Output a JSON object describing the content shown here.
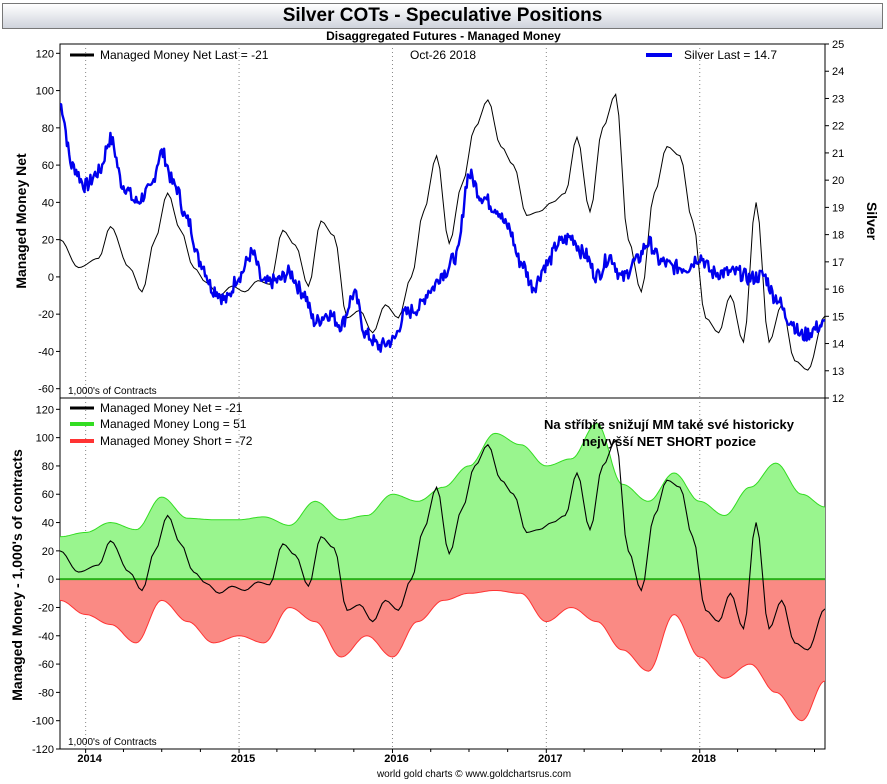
{
  "header": {
    "title": "Silver COTs - Speculative Positions",
    "subtitle": "Disaggregated Futures - Managed Money",
    "footer": "world gold charts © www.goldchartsrus.com"
  },
  "colors": {
    "net": "#000000",
    "silver": "#0000ee",
    "long": "#33dd22",
    "long_fill": "#99f58e",
    "short": "#ff3333",
    "short_fill": "#fa8a84"
  },
  "chart_data": [
    {
      "type": "line",
      "position": "top",
      "ylabel": "Managed Money Net",
      "y2label": "Silver",
      "ylim": [
        -65,
        125
      ],
      "y2lim": [
        12,
        25
      ],
      "yticks": [
        120,
        100,
        80,
        60,
        40,
        20,
        0,
        -20,
        -40,
        -60
      ],
      "y2ticks": [
        25,
        24,
        23,
        22,
        21,
        20,
        19,
        18,
        17,
        16,
        15,
        14,
        13,
        12
      ],
      "date_label": "Oct-26  2018",
      "units_note": "1,000's of Contracts",
      "x_range": [
        "2013-11-01",
        "2018-10-26"
      ],
      "series": [
        {
          "name": "Managed Money Net",
          "legend": "Managed Money Net   Last = -21",
          "axis": "left",
          "x": [
            "2013-11-01",
            "2013-12-15",
            "2014-02-01",
            "2014-03-01",
            "2014-04-15",
            "2014-05-15",
            "2014-06-15",
            "2014-07-15",
            "2014-08-15",
            "2014-09-15",
            "2014-10-15",
            "2014-11-15",
            "2014-12-15",
            "2015-01-15",
            "2015-02-15",
            "2015-03-15",
            "2015-04-15",
            "2015-05-15",
            "2015-06-15",
            "2015-07-15",
            "2015-08-15",
            "2015-09-15",
            "2015-10-15",
            "2015-11-15",
            "2015-12-15",
            "2016-01-15",
            "2016-02-15",
            "2016-03-15",
            "2016-04-15",
            "2016-05-15",
            "2016-06-15",
            "2016-07-15",
            "2016-08-15",
            "2016-09-15",
            "2016-10-15",
            "2016-11-15",
            "2016-12-15",
            "2017-01-15",
            "2017-02-15",
            "2017-03-15",
            "2017-04-15",
            "2017-05-15",
            "2017-06-15",
            "2017-07-15",
            "2017-08-15",
            "2017-09-15",
            "2017-10-15",
            "2017-11-15",
            "2017-12-15",
            "2018-01-15",
            "2018-02-15",
            "2018-03-15",
            "2018-04-15",
            "2018-05-15",
            "2018-06-15",
            "2018-07-15",
            "2018-08-15",
            "2018-09-15",
            "2018-10-26"
          ],
          "values": [
            20,
            5,
            10,
            27,
            5,
            -8,
            20,
            45,
            25,
            5,
            -3,
            -10,
            -5,
            -8,
            -2,
            -4,
            25,
            17,
            -5,
            30,
            22,
            -22,
            -18,
            -30,
            -15,
            -22,
            0,
            35,
            65,
            18,
            50,
            80,
            95,
            70,
            60,
            33,
            35,
            40,
            45,
            75,
            35,
            80,
            98,
            20,
            -8,
            45,
            70,
            65,
            30,
            -22,
            -30,
            -10,
            -35,
            40,
            -35,
            -15,
            -45,
            -50,
            -21
          ]
        },
        {
          "name": "Silver",
          "legend": "Silver Last = 14.7",
          "axis": "right",
          "x": [
            "2013-11-01",
            "2013-12-01",
            "2014-01-01",
            "2014-02-01",
            "2014-03-01",
            "2014-04-01",
            "2014-05-01",
            "2014-06-01",
            "2014-07-01",
            "2014-08-01",
            "2014-09-01",
            "2014-10-01",
            "2014-11-01",
            "2014-12-01",
            "2015-01-01",
            "2015-02-01",
            "2015-03-01",
            "2015-04-01",
            "2015-05-01",
            "2015-06-01",
            "2015-07-01",
            "2015-08-01",
            "2015-09-01",
            "2015-10-01",
            "2015-11-01",
            "2015-12-01",
            "2016-01-01",
            "2016-02-01",
            "2016-03-01",
            "2016-04-01",
            "2016-05-01",
            "2016-06-01",
            "2016-07-01",
            "2016-08-01",
            "2016-09-01",
            "2016-10-01",
            "2016-11-01",
            "2016-12-01",
            "2017-01-01",
            "2017-02-01",
            "2017-03-01",
            "2017-04-01",
            "2017-05-01",
            "2017-06-01",
            "2017-07-01",
            "2017-08-01",
            "2017-09-01",
            "2017-10-01",
            "2017-11-01",
            "2017-12-01",
            "2018-01-01",
            "2018-02-01",
            "2018-03-01",
            "2018-04-01",
            "2018-05-01",
            "2018-06-01",
            "2018-07-01",
            "2018-08-01",
            "2018-09-01",
            "2018-10-26"
          ],
          "values": [
            22.8,
            20.5,
            19.8,
            20.3,
            21.5,
            19.8,
            19.2,
            19.6,
            21.0,
            19.8,
            18.5,
            17.0,
            16.0,
            15.6,
            16.5,
            17.3,
            16.2,
            16.3,
            16.6,
            15.9,
            14.8,
            15.1,
            14.7,
            15.8,
            14.3,
            13.9,
            14.1,
            15.1,
            15.3,
            16.0,
            16.6,
            17.2,
            20.2,
            19.4,
            19.0,
            18.3,
            17.0,
            16.1,
            16.9,
            17.7,
            17.9,
            17.3,
            16.5,
            17.2,
            16.4,
            17.0,
            17.7,
            17.0,
            16.8,
            16.8,
            17.2,
            16.6,
            16.6,
            16.6,
            16.4,
            16.5,
            15.7,
            14.9,
            14.3,
            14.7
          ]
        }
      ]
    },
    {
      "type": "area",
      "position": "bottom",
      "ylabel": "Managed Money - 1,000's of contracts",
      "ylim": [
        -120,
        128
      ],
      "yticks": [
        120,
        100,
        80,
        60,
        40,
        20,
        0,
        -20,
        -40,
        -60,
        -80,
        -100,
        -120
      ],
      "xticks": [
        "2014",
        "2015",
        "2016",
        "2017",
        "2018"
      ],
      "units_note": "1,000's of Contracts",
      "annotation": [
        "Na stříbře snižují MM také své historicky",
        "nejvyšší NET SHORT pozice"
      ],
      "x_range": [
        "2013-11-01",
        "2018-10-26"
      ],
      "series": [
        {
          "name": "Managed Money Net",
          "legend": "Managed Money Net      = -21",
          "x": [
            "2013-11-01",
            "2013-12-15",
            "2014-02-01",
            "2014-03-01",
            "2014-04-15",
            "2014-05-15",
            "2014-06-15",
            "2014-07-15",
            "2014-08-15",
            "2014-09-15",
            "2014-10-15",
            "2014-11-15",
            "2014-12-15",
            "2015-01-15",
            "2015-02-15",
            "2015-03-15",
            "2015-04-15",
            "2015-05-15",
            "2015-06-15",
            "2015-07-15",
            "2015-08-15",
            "2015-09-15",
            "2015-10-15",
            "2015-11-15",
            "2015-12-15",
            "2016-01-15",
            "2016-02-15",
            "2016-03-15",
            "2016-04-15",
            "2016-05-15",
            "2016-06-15",
            "2016-07-15",
            "2016-08-15",
            "2016-09-15",
            "2016-10-15",
            "2016-11-15",
            "2016-12-15",
            "2017-01-15",
            "2017-02-15",
            "2017-03-15",
            "2017-04-15",
            "2017-05-15",
            "2017-06-15",
            "2017-07-15",
            "2017-08-15",
            "2017-09-15",
            "2017-10-15",
            "2017-11-15",
            "2017-12-15",
            "2018-01-15",
            "2018-02-15",
            "2018-03-15",
            "2018-04-15",
            "2018-05-15",
            "2018-06-15",
            "2018-07-15",
            "2018-08-15",
            "2018-09-15",
            "2018-10-26"
          ],
          "values": [
            20,
            5,
            10,
            27,
            5,
            -8,
            20,
            45,
            25,
            5,
            -3,
            -10,
            -5,
            -8,
            -2,
            -4,
            25,
            17,
            -5,
            30,
            22,
            -22,
            -18,
            -30,
            -15,
            -22,
            0,
            35,
            65,
            18,
            50,
            80,
            95,
            70,
            60,
            33,
            35,
            40,
            45,
            75,
            35,
            80,
            98,
            20,
            -8,
            45,
            70,
            65,
            30,
            -22,
            -30,
            -10,
            -35,
            40,
            -35,
            -15,
            -45,
            -50,
            -21
          ]
        },
        {
          "name": "Managed Money Long",
          "legend": "Managed Money Long    = 51",
          "x": [
            "2013-11-01",
            "2014-01-01",
            "2014-03-01",
            "2014-05-01",
            "2014-07-01",
            "2014-09-01",
            "2014-11-01",
            "2015-01-01",
            "2015-03-01",
            "2015-05-01",
            "2015-07-01",
            "2015-09-01",
            "2015-11-01",
            "2016-01-01",
            "2016-03-01",
            "2016-05-01",
            "2016-07-01",
            "2016-09-01",
            "2016-11-01",
            "2017-01-01",
            "2017-03-01",
            "2017-05-01",
            "2017-07-01",
            "2017-09-01",
            "2017-11-01",
            "2018-01-01",
            "2018-03-01",
            "2018-05-01",
            "2018-07-01",
            "2018-09-01",
            "2018-10-26"
          ],
          "values": [
            30,
            33,
            40,
            35,
            58,
            43,
            42,
            42,
            44,
            38,
            55,
            42,
            45,
            60,
            55,
            65,
            80,
            103,
            95,
            80,
            85,
            110,
            67,
            55,
            75,
            55,
            45,
            65,
            82,
            60,
            51
          ]
        },
        {
          "name": "Managed Money Short",
          "legend": "Managed Money Short   = -72",
          "x": [
            "2013-11-01",
            "2014-01-01",
            "2014-03-01",
            "2014-05-01",
            "2014-07-01",
            "2014-09-01",
            "2014-11-01",
            "2015-01-01",
            "2015-03-01",
            "2015-05-01",
            "2015-07-01",
            "2015-09-01",
            "2015-11-01",
            "2016-01-01",
            "2016-03-01",
            "2016-05-01",
            "2016-07-01",
            "2016-09-01",
            "2016-11-01",
            "2017-01-01",
            "2017-03-01",
            "2017-05-01",
            "2017-07-01",
            "2017-09-01",
            "2017-11-01",
            "2018-01-01",
            "2018-03-01",
            "2018-05-01",
            "2018-07-01",
            "2018-09-01",
            "2018-10-26"
          ],
          "values": [
            -15,
            -25,
            -32,
            -45,
            -15,
            -30,
            -45,
            -40,
            -45,
            -20,
            -30,
            -55,
            -40,
            -55,
            -30,
            -15,
            -10,
            -8,
            -10,
            -30,
            -20,
            -30,
            -50,
            -65,
            -25,
            -55,
            -70,
            -60,
            -80,
            -100,
            -72
          ]
        }
      ]
    }
  ]
}
